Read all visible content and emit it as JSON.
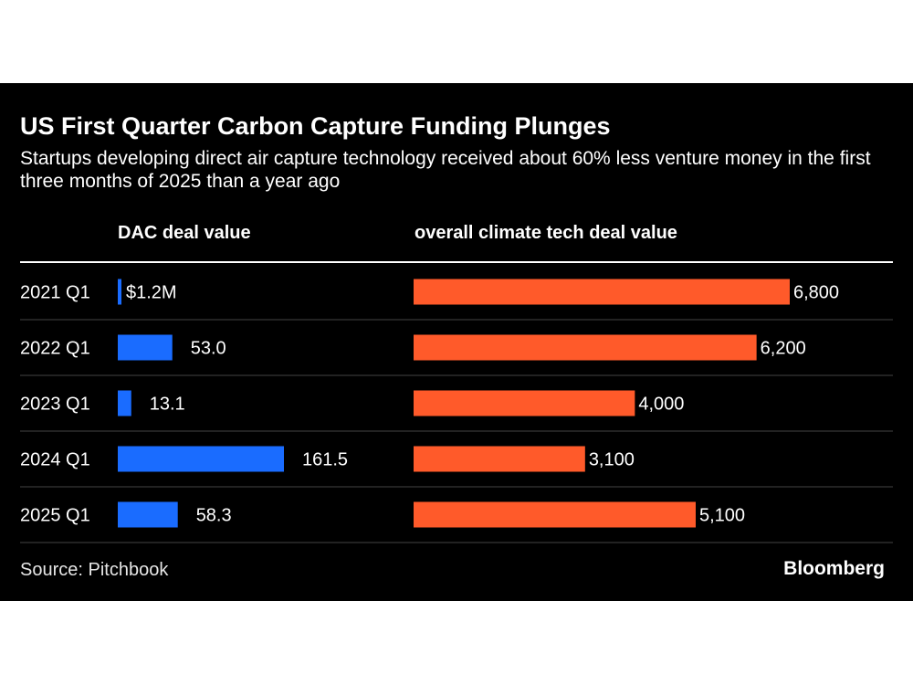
{
  "title": "US First Quarter Carbon Capture Funding Plunges",
  "subtitle": "Startups developing direct air capture technology received about 60% less venture money in the first three months of 2025 than a year ago",
  "source": "Source: Pitchbook",
  "brand": "Bloomberg",
  "colors": {
    "background": "#000000",
    "dac_bar": "#1a6cff",
    "climate_bar": "#ff5a2a",
    "text": "#ffffff",
    "divider": "#444444"
  },
  "chart_data": {
    "type": "bar",
    "orientation": "horizontal",
    "categories": [
      "2021 Q1",
      "2022 Q1",
      "2023 Q1",
      "2024 Q1",
      "2025 Q1"
    ],
    "series": [
      {
        "name": "DAC deal value",
        "values": [
          1.2,
          53.0,
          13.1,
          161.5,
          58.3
        ],
        "labels": [
          "$1.2M",
          "53.0",
          "13.1",
          "161.5",
          "58.3"
        ]
      },
      {
        "name": "overall climate tech deal value",
        "values": [
          6800,
          6200,
          4000,
          3100,
          5100
        ],
        "labels": [
          "6,800",
          "6,200",
          "4,000",
          "3,100",
          "5,100"
        ]
      }
    ],
    "xlim_dac": [
      0,
      161.5
    ],
    "xlim_climate": [
      0,
      6800
    ],
    "legend": "column headers"
  }
}
